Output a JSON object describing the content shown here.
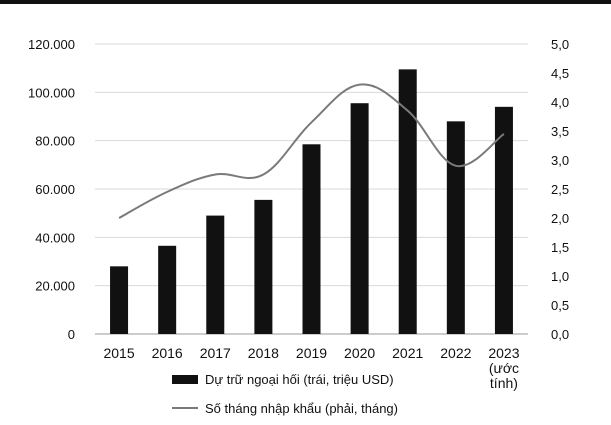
{
  "chart_data": {
    "type": "bar",
    "categories": [
      "2015",
      "2016",
      "2017",
      "2018",
      "2019",
      "2020",
      "2021",
      "2022",
      "2023"
    ],
    "category_labels": [
      [
        "2015"
      ],
      [
        "2016"
      ],
      [
        "2017"
      ],
      [
        "2018"
      ],
      [
        "2019"
      ],
      [
        "2020"
      ],
      [
        "2021"
      ],
      [
        "2022"
      ],
      [
        "2023",
        "(ước",
        "tính)"
      ]
    ],
    "series": [
      {
        "name": "Dự trữ ngoại hối (trái, triệu USD)",
        "type": "bar",
        "axis": "left",
        "color": "#111111",
        "values": [
          28000,
          36500,
          49000,
          55500,
          78500,
          95500,
          109500,
          88000,
          94000
        ]
      },
      {
        "name": "Số tháng nhập khẩu (phải, tháng)",
        "type": "line",
        "axis": "right",
        "color": "#7a7a7a",
        "values": [
          2.0,
          2.45,
          2.75,
          2.75,
          3.65,
          4.3,
          3.85,
          2.9,
          3.45
        ]
      }
    ],
    "y_left": {
      "ylim": [
        0,
        120000
      ],
      "ticks": [
        0,
        20000,
        40000,
        60000,
        80000,
        100000,
        120000
      ],
      "tick_labels": [
        "0",
        "20.000",
        "40.000",
        "60.000",
        "80.000",
        "100.000",
        "120.000"
      ]
    },
    "y_right": {
      "ylim": [
        0,
        5
      ],
      "ticks": [
        0,
        0.5,
        1,
        1.5,
        2,
        2.5,
        3,
        3.5,
        4,
        4.5,
        5
      ],
      "tick_labels": [
        "0,0",
        "0,5",
        "1,0",
        "1,5",
        "2,0",
        "2,5",
        "3,0",
        "3,5",
        "4,0",
        "4,5",
        "5,0"
      ]
    },
    "grid": true,
    "legend_position": "bottom"
  }
}
